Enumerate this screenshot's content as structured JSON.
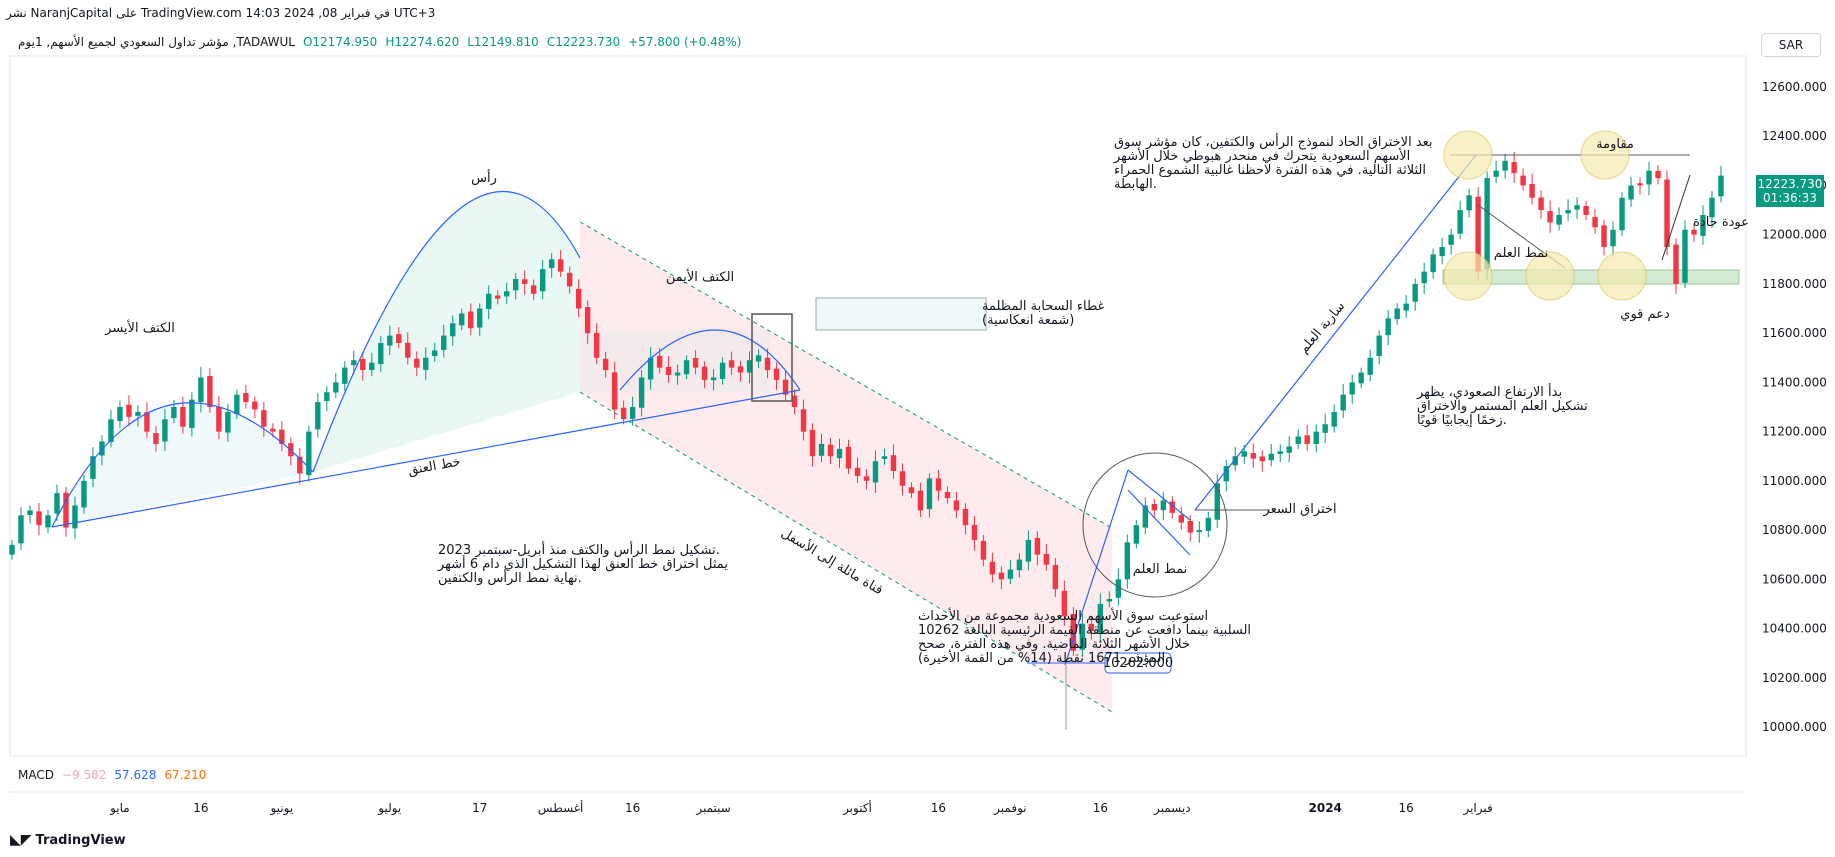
{
  "header": {
    "published": "نشر NaranjCapital على TradingView.com 14:03 2024 ,08 في فبراير UTC+3",
    "symbol_line": "مؤشر تداول السعودي لجميع الأسهم, 1يوم ,TADAWUL",
    "open": "O12174.950",
    "high": "H12274.620",
    "low": "L12149.810",
    "close": "C12223.730",
    "change": "+57.800 (+0.48%)",
    "currency": "SAR"
  },
  "price_tag": {
    "price": "12223.730",
    "countdown": "01:36:33"
  },
  "macd": {
    "label": "MACD",
    "v1": "−9.582",
    "v2": "57.628",
    "v3": "67.210",
    "c1": "#f7a7b4",
    "c2": "#2962ff",
    "c3": "#ff6d00"
  },
  "footer": {
    "brand": "TradingView"
  },
  "annotations": {
    "left_shoulder": "الكتف الأيسر",
    "head": "رأس",
    "right_shoulder": "الكتف الأيمن",
    "neckline": "خط العنق",
    "hs_text": [
      ".تشكيل نمط الرأس والكتف منذ أبريل-سبتمبر 2023",
      "يمثل اختراق خط العنق لهذا التشكيل الذي دام 6 أشهر",
      ".نهاية نمط الرأس والكتفين"
    ],
    "dark_cloud": [
      "غطاء السحابة المظلمة",
      "(شمعة انعكاسية)"
    ],
    "channel": "قناة مائلة إلى الأسفل",
    "absorb_text": [
      "استوعبت سوق الأسهم السعودية مجموعة من الأحداث",
      "السلبية بينما دافعت عن منطقة القيمة الرئيسية البالغة 10262",
      "خلال الأشهر الثلاثة الماضية. وفي هذه الفترة، صحح",
      ".المؤشر 1671 نقطة (14% من القمة الأخيرة)"
    ],
    "after_break_text": [
      "بعد الاختراق الحاد لنموذج الرأس والكتفين، كان مؤشر سوق",
      "الأسهم السعودية يتحرك في منحدر هبوطي خلال الأشهر",
      "الثلاثة التالية. في هذه الفترة لاحظنا غالبية الشموع الحمراء",
      ".الهابطة"
    ],
    "flag_pattern": "نمط العلم",
    "price_breakout": "اختراق السعر",
    "flag_pole": "سارية العلم",
    "rally_text": [
      "بدأ الارتفاع الصعودي، يظهر",
      "تشكيل العلم المستمر والاختراق",
      ".زخمًا إيجابيًا قويًا"
    ],
    "flag_pattern2": "نمط العلم",
    "resistance": "مقاومة",
    "strong_support": "دعم قوي",
    "sharp_return": "عودة حادة",
    "low_label": "10262.000"
  },
  "chart_data": {
    "type": "candlestick",
    "title": "",
    "xlabel": "",
    "ylabel": "",
    "y_axis_side": "right",
    "ylim": [
      9950,
      12750
    ],
    "y_ticks": [
      10000,
      10200,
      10400,
      10600,
      10800,
      11000,
      11200,
      11400,
      11600,
      11800,
      12000,
      12200,
      12400,
      12600
    ],
    "y_tick_labels": [
      "10000.000",
      "10200.000",
      "10400.000",
      "10600.000",
      "10800.000",
      "11000.000",
      "11200.000",
      "11400.000",
      "11600.000",
      "11800.000",
      "12000.000",
      "12200.000",
      "12400.000",
      "12600.000"
    ],
    "x_range": [
      0,
      185
    ],
    "x_ticks": [
      {
        "i": 12,
        "label": "مايو"
      },
      {
        "i": 21,
        "label": "16"
      },
      {
        "i": 30,
        "label": "يونيو"
      },
      {
        "i": 42,
        "label": "يوليو"
      },
      {
        "i": 52,
        "label": "17"
      },
      {
        "i": 61,
        "label": "أغسطس"
      },
      {
        "i": 69,
        "label": "16"
      },
      {
        "i": 78,
        "label": "سبتمبر"
      },
      {
        "i": 94,
        "label": "أكتوبر"
      },
      {
        "i": 103,
        "label": "16"
      },
      {
        "i": 111,
        "label": "نوفمبر"
      },
      {
        "i": 121,
        "label": "16"
      },
      {
        "i": 129,
        "label": "ديسمبر"
      },
      {
        "i": 146,
        "label": "2024"
      },
      {
        "i": 155,
        "label": "16"
      },
      {
        "i": 163,
        "label": "فبراير"
      }
    ],
    "up_color": "#089981",
    "down_color": "#f23645",
    "closes": [
      10740,
      10860,
      10880,
      10820,
      10860,
      10950,
      10810,
      10900,
      11000,
      11100,
      11160,
      11250,
      11300,
      11260,
      11280,
      11200,
      11150,
      11250,
      11300,
      11220,
      11330,
      11420,
      11300,
      11200,
      11280,
      11350,
      11320,
      11290,
      11220,
      11200,
      11150,
      11100,
      11030,
      11200,
      11320,
      11360,
      11400,
      11460,
      11490,
      11450,
      11480,
      11560,
      11590,
      11560,
      11500,
      11460,
      11500,
      11530,
      11590,
      11640,
      11680,
      11620,
      11700,
      11760,
      11740,
      11770,
      11820,
      11800,
      11760,
      11860,
      11900,
      11850,
      11790,
      11700,
      11600,
      11500,
      11450,
      11290,
      11250,
      11300,
      11420,
      11500,
      11460,
      11430,
      11440,
      11490,
      11460,
      11410,
      11420,
      11480,
      11460,
      11440,
      11490,
      11510,
      11450,
      11410,
      11350,
      11300,
      11200,
      11100,
      11150,
      11100,
      11130,
      11050,
      11020,
      11000,
      11080,
      11100,
      11040,
      10980,
      10950,
      10880,
      11010,
      10960,
      10930,
      10880,
      10820,
      10760,
      10680,
      10620,
      10600,
      10640,
      10680,
      10760,
      10700,
      10660,
      10560,
      10450,
      10310,
      10420,
      10390,
      10500,
      10520,
      10600,
      10750,
      10820,
      10900,
      10880,
      10920,
      10870,
      10830,
      10790,
      10800,
      10850,
      10990,
      11060,
      11100,
      11120,
      11090,
      11080,
      11110,
      11120,
      11140,
      11180,
      11150,
      11200,
      11230,
      11280,
      11350,
      11400,
      11440,
      11500,
      11590,
      11660,
      11700,
      11720,
      11800,
      11850,
      11920,
      11950,
      12000,
      12100,
      12160,
      11850,
      12230,
      12260,
      12300,
      12250,
      12200,
      12150,
      12100,
      12050,
      12080,
      12100,
      12120,
      12080,
      12030,
      11950,
      12020,
      12150,
      12200,
      12200,
      12260,
      12230,
      11950,
      11800,
      12020,
      12000,
      12080,
      12150,
      12240
    ]
  }
}
